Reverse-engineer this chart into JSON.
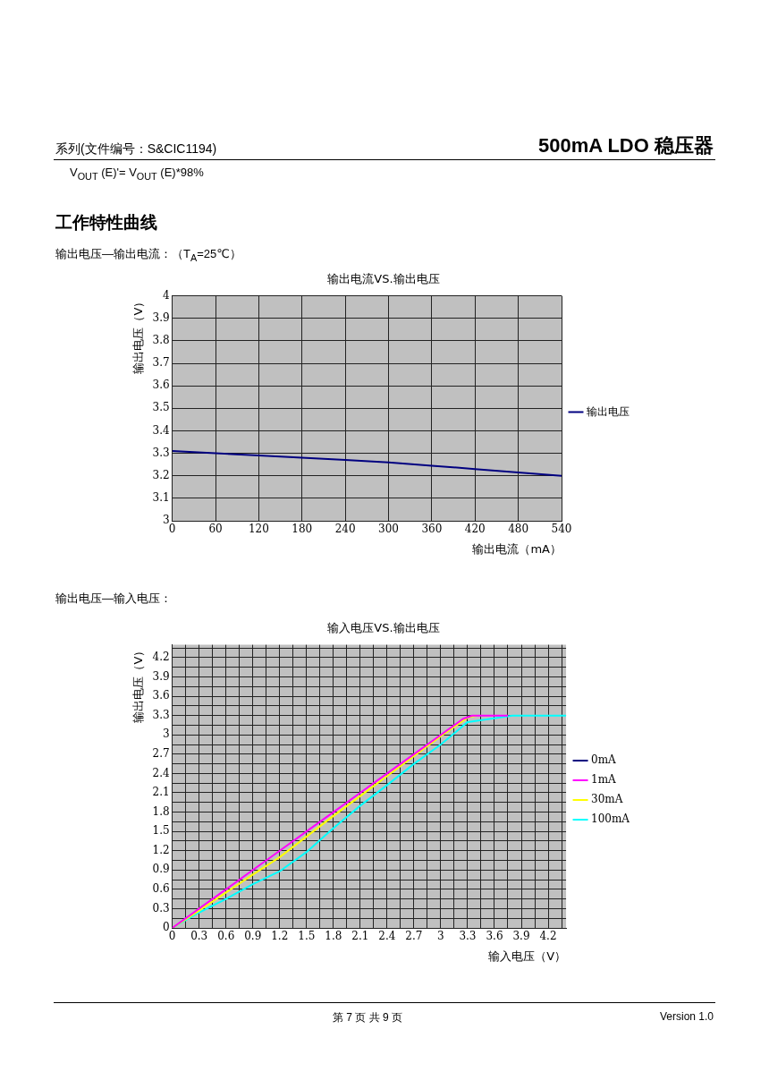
{
  "chart_data": [
    {
      "type": "line",
      "title": "输出电流VS.输出电压",
      "xlabel": "输出电流（mA）",
      "ylabel": "输出电压（V）",
      "annotations": [
        "500mA LDO 稳压器",
        "系列(文件编号：S&CIC1194)",
        "V$_{OUT}$ (E)'= V$_{OUT}$ (E)*98%",
        "工作特性曲线",
        "输出电压—输出电流：（T$_{A}$=25℃）"
      ],
      "x": [
        0,
        60,
        120,
        180,
        240,
        300,
        360,
        420,
        480,
        540
      ],
      "series": [
        {
          "name": "输出电压",
          "color": "#000080",
          "values": [
            3.31,
            3.3,
            3.29,
            3.28,
            3.27,
            3.26,
            3.245,
            3.23,
            3.215,
            3.2
          ]
        }
      ],
      "xlim": [
        0,
        540
      ],
      "xticks": [
        0,
        60,
        120,
        180,
        240,
        300,
        360,
        420,
        480,
        540
      ],
      "ylim": [
        3,
        4
      ],
      "yticks": [
        3,
        3.1,
        3.2,
        3.3,
        3.4,
        3.5,
        3.6,
        3.7,
        3.8,
        3.9,
        4
      ],
      "grid": true,
      "legend": "right",
      "marker": "none",
      "line_style": "solid"
    },
    {
      "type": "line",
      "title": "输入电压VS.输出电压",
      "xlabel": "输入电压（V）",
      "ylabel": "输出电压（V）",
      "annotations": [
        "输出电压—输入电压：",
        "第 7 页 共 9 页",
        "Version 1.0"
      ],
      "series": [
        {
          "name": "0mA",
          "color": "#000080"
        },
        {
          "name": "1mA",
          "color": "#ff00ff",
          "x": [
            0,
            0.3,
            0.6,
            0.9,
            1.2,
            1.5,
            1.8,
            2.1,
            2.4,
            2.7,
            3.0,
            3.25,
            3.35,
            3.45,
            3.75
          ],
          "values": [
            0,
            0.3,
            0.6,
            0.9,
            1.2,
            1.5,
            1.8,
            2.1,
            2.4,
            2.7,
            3.0,
            3.25,
            3.3,
            3.3,
            3.3
          ]
        },
        {
          "name": "30mA",
          "color": "#ffff00",
          "x": [
            0,
            0.3,
            0.6,
            0.9,
            1.2,
            1.5,
            1.8,
            2.1,
            2.4,
            2.7,
            3.0,
            3.3,
            3.4
          ],
          "values": [
            0,
            0.27,
            0.55,
            0.83,
            1.1,
            1.42,
            1.74,
            2.05,
            2.36,
            2.67,
            2.98,
            3.27,
            3.3
          ]
        },
        {
          "name": "100mA",
          "color": "#00ffff",
          "x": [
            0,
            0.3,
            0.6,
            0.9,
            1.2,
            1.5,
            1.8,
            2.1,
            2.4,
            2.7,
            3.0,
            3.3,
            3.8,
            4.4
          ],
          "values": [
            0,
            0.24,
            0.45,
            0.68,
            0.88,
            1.18,
            1.55,
            1.9,
            2.22,
            2.55,
            2.85,
            3.2,
            3.3,
            3.3
          ]
        }
      ],
      "xlim": [
        0,
        4.4
      ],
      "xticks": [
        0,
        {
          "value": 0.15,
          "label": null
        },
        0.3,
        {
          "value": 0.45,
          "label": null
        },
        0.6,
        {
          "value": 0.75,
          "label": null
        },
        0.9,
        {
          "value": 1.05,
          "label": null
        },
        1.2,
        {
          "value": 1.35,
          "label": null
        },
        1.5,
        {
          "value": 1.65,
          "label": null
        },
        1.8,
        {
          "value": 1.95,
          "label": null
        },
        2.1,
        {
          "value": 2.25,
          "label": null
        },
        2.4,
        {
          "value": 2.55,
          "label": null
        },
        2.7,
        {
          "value": 2.85,
          "label": null
        },
        3,
        {
          "value": 3.15,
          "label": null
        },
        3.3,
        {
          "value": 3.45,
          "label": null
        },
        3.6,
        {
          "value": 3.75,
          "label": null
        },
        3.9,
        {
          "value": 4.05,
          "label": null
        },
        4.2,
        {
          "value": 4.35,
          "label": null
        }
      ],
      "ylim": [
        0,
        4.4
      ],
      "yticks": [
        0,
        {
          "value": 0.15,
          "label": null
        },
        0.3,
        {
          "value": 0.45,
          "label": null
        },
        0.6,
        {
          "value": 0.75,
          "label": null
        },
        0.9,
        {
          "value": 1.05,
          "label": null
        },
        1.2,
        {
          "value": 1.35,
          "label": null
        },
        1.5,
        {
          "value": 1.65,
          "label": null
        },
        1.8,
        {
          "value": 1.95,
          "label": null
        },
        2.1,
        {
          "value": 2.25,
          "label": null
        },
        2.4,
        {
          "value": 2.55,
          "label": null
        },
        2.7,
        {
          "value": 2.85,
          "label": null
        },
        3,
        {
          "value": 3.15,
          "label": null
        },
        3.3,
        {
          "value": 3.45,
          "label": null
        },
        3.6,
        {
          "value": 3.75,
          "label": null
        },
        3.9,
        {
          "value": 4.05,
          "label": null
        },
        4.2,
        {
          "value": 4.35,
          "label": null
        }
      ],
      "grid": true,
      "legend": "right",
      "marker": "none",
      "line_style": "solid"
    }
  ]
}
